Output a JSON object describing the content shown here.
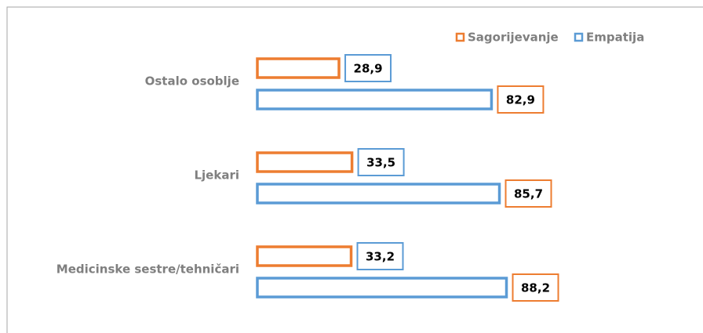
{
  "chart_data": {
    "type": "bar",
    "orientation": "horizontal",
    "categories": [
      "Ostalo osoblje",
      "Ljekari",
      "Medicinske sestre/tehničari"
    ],
    "series": [
      {
        "name": "Sagorijevanje",
        "color": "#ed7d31",
        "values": [
          28.9,
          33.5,
          33.2
        ],
        "value_labels": [
          "28,9",
          "33,5",
          "33,2"
        ]
      },
      {
        "name": "Empatija",
        "color": "#5b9bd5",
        "values": [
          82.9,
          85.7,
          88.2
        ],
        "value_labels": [
          "82,9",
          "85,7",
          "88,2"
        ]
      }
    ],
    "xlim": [
      0,
      100
    ],
    "legend": "top-right"
  }
}
